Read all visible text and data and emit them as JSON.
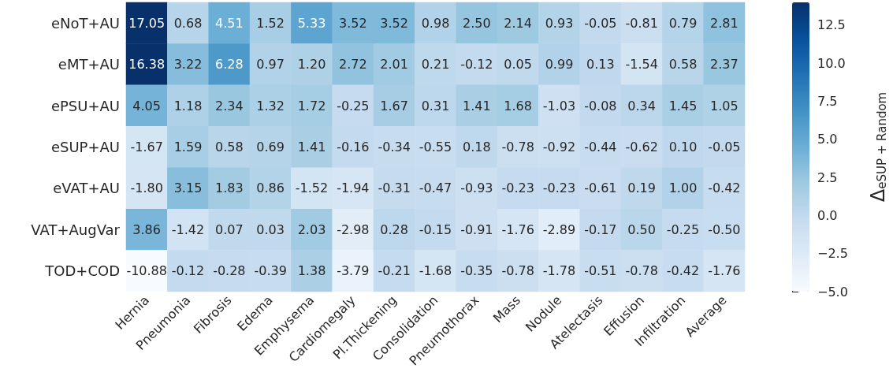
{
  "chart_data": {
    "type": "heatmap",
    "clabel": "Δ$_{eSUP + Random}$",
    "categories": [
      "Hernia",
      "Pneumonia",
      "Fibrosis",
      "Edema",
      "Emphysema",
      "Cardiomegaly",
      "Pl.Thickening",
      "Consolidation",
      "Pneumothorax",
      "Mass",
      "Nodule",
      "Atelectasis",
      "Effusion",
      "Infiltration",
      "Average"
    ],
    "y_categories": [
      "eNoT+AU",
      "eMT+AU",
      "ePSU+AU",
      "eSUP+AU",
      "eVAT+AU",
      "VAT+AugVar",
      "TOD+COD"
    ],
    "cells": [
      [
        17.05,
        0.68,
        4.51,
        1.52,
        5.33,
        3.52,
        3.52,
        0.98,
        2.5,
        2.14,
        0.93,
        -0.05,
        -0.81,
        0.79,
        2.81
      ],
      [
        16.38,
        3.22,
        6.28,
        0.97,
        1.2,
        2.72,
        2.01,
        0.21,
        -0.12,
        0.05,
        0.99,
        0.13,
        -1.54,
        0.58,
        2.37
      ],
      [
        4.05,
        1.18,
        2.34,
        1.32,
        1.72,
        -0.25,
        1.67,
        0.31,
        1.41,
        1.68,
        -1.03,
        -0.08,
        0.34,
        1.45,
        1.05
      ],
      [
        -1.67,
        1.59,
        0.58,
        0.69,
        1.41,
        -0.16,
        -0.34,
        -0.55,
        0.18,
        -0.78,
        -0.92,
        -0.44,
        -0.62,
        0.1,
        -0.05
      ],
      [
        -1.8,
        3.15,
        1.83,
        0.86,
        -1.52,
        -1.94,
        -0.31,
        -0.47,
        -0.93,
        -0.23,
        -0.23,
        -0.61,
        0.19,
        1.0,
        -0.42
      ],
      [
        3.86,
        -1.42,
        0.07,
        0.03,
        2.03,
        -2.98,
        0.28,
        -0.15,
        -0.91,
        -1.76,
        -2.89,
        -0.17,
        0.5,
        -0.25,
        -0.5
      ],
      [
        -10.88,
        -0.12,
        -0.28,
        -0.39,
        1.38,
        -3.79,
        -0.21,
        -1.68,
        -0.35,
        -0.78,
        -1.78,
        -0.51,
        -0.78,
        -0.42,
        -1.76
      ]
    ],
    "clim": [
      -5,
      14
    ],
    "cticks": [
      {
        "value": -5,
        "label": "−5.0"
      },
      {
        "value": -2.5,
        "label": "−2.5"
      },
      {
        "value": 0,
        "label": "0.0"
      },
      {
        "value": 2.5,
        "label": "2.5"
      },
      {
        "value": 5,
        "label": "5.0"
      },
      {
        "value": 7.5,
        "label": "7.5"
      },
      {
        "value": 10,
        "label": "10.0"
      },
      {
        "value": 12.5,
        "label": "12.5"
      }
    ],
    "cell_labels": [
      [
        "17.05",
        "0.68",
        "4.51",
        "1.52",
        "5.33",
        "3.52",
        "3.52",
        "0.98",
        "2.50",
        "2.14",
        "0.93",
        "-0.05",
        "-0.81",
        "0.79",
        "2.81"
      ],
      [
        "16.38",
        "3.22",
        "6.28",
        "0.97",
        "1.20",
        "2.72",
        "2.01",
        "0.21",
        "-0.12",
        "0.05",
        "0.99",
        "0.13",
        "-1.54",
        "0.58",
        "2.37"
      ],
      [
        "4.05",
        "1.18",
        "2.34",
        "1.32",
        "1.72",
        "-0.25",
        "1.67",
        "0.31",
        "1.41",
        "1.68",
        "-1.03",
        "-0.08",
        "0.34",
        "1.45",
        "1.05"
      ],
      [
        "-1.67",
        "1.59",
        "0.58",
        "0.69",
        "1.41",
        "-0.16",
        "-0.34",
        "-0.55",
        "0.18",
        "-0.78",
        "-0.92",
        "-0.44",
        "-0.62",
        "0.10",
        "-0.05"
      ],
      [
        "-1.80",
        "3.15",
        "1.83",
        "0.86",
        "-1.52",
        "-1.94",
        "-0.31",
        "-0.47",
        "-0.93",
        "-0.23",
        "-0.23",
        "-0.61",
        "0.19",
        "1.00",
        "-0.42"
      ],
      [
        "3.86",
        "-1.42",
        "0.07",
        "0.03",
        "2.03",
        "-2.98",
        "0.28",
        "-0.15",
        "-0.91",
        "-1.76",
        "-2.89",
        "-0.17",
        "0.50",
        "-0.25",
        "-0.50"
      ],
      [
        "-10.88",
        "-0.12",
        "-0.28",
        "-0.39",
        "1.38",
        "-3.79",
        "-0.21",
        "-1.68",
        "-0.35",
        "-0.78",
        "-1.78",
        "-0.51",
        "-0.78",
        "-0.42",
        "-1.76"
      ]
    ]
  }
}
